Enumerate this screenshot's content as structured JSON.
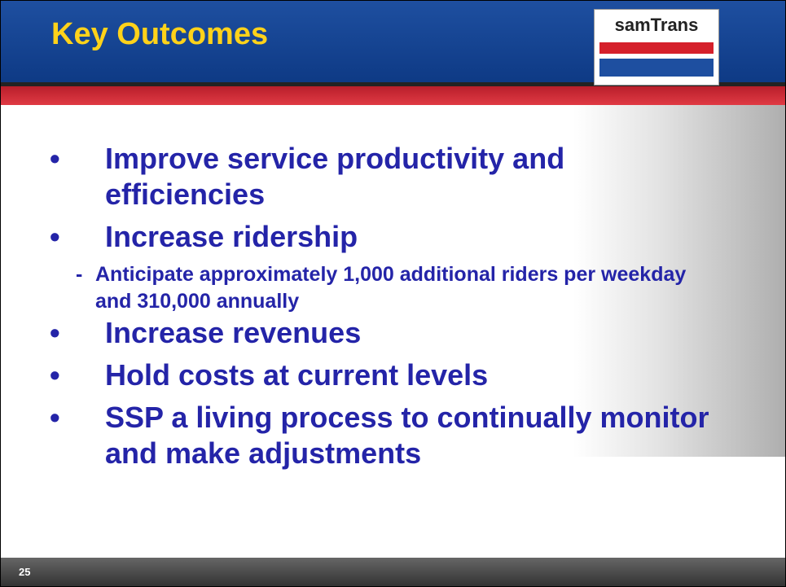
{
  "header": {
    "title": "Key Outcomes",
    "logo": "samTrans"
  },
  "bullets": [
    {
      "text": "Improve service productivity and efficiencies"
    },
    {
      "text": "Increase ridership",
      "sub": [
        "Anticipate approximately 1,000 additional riders per weekday and 310,000 annually"
      ]
    },
    {
      "text": "Increase revenues"
    },
    {
      "text": "Hold costs at current levels"
    },
    {
      "text": "SSP a living process to continually monitor and make adjustments"
    }
  ],
  "footer": {
    "page": "25"
  }
}
